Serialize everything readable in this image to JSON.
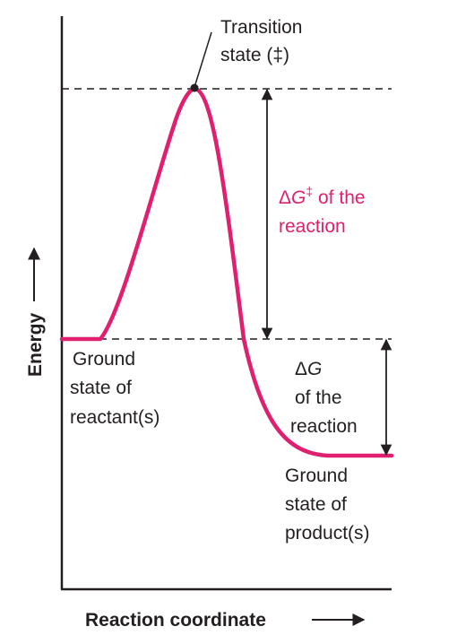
{
  "axes": {
    "x_label": "Reaction coordinate",
    "y_label": "Energy"
  },
  "labels": {
    "transition_state": [
      "Transition",
      "state (‡)"
    ],
    "delta_g_double_dagger": {
      "delta_symbol": "Δ",
      "variable": "G",
      "superscript": "‡",
      "rest": " of the",
      "line2": "reaction"
    },
    "delta_g": {
      "delta_symbol": "Δ",
      "variable": "G",
      "line2": "of the",
      "line3": "reaction"
    },
    "ground_state_reactants": [
      "Ground",
      "state of",
      "reactant(s)"
    ],
    "ground_state_products": [
      "Ground",
      "state of",
      "product(s)"
    ]
  },
  "colors": {
    "curve": "#e0206e",
    "text": "#231f20",
    "accent_text": "#e0206e",
    "lines": "#231f20"
  }
}
